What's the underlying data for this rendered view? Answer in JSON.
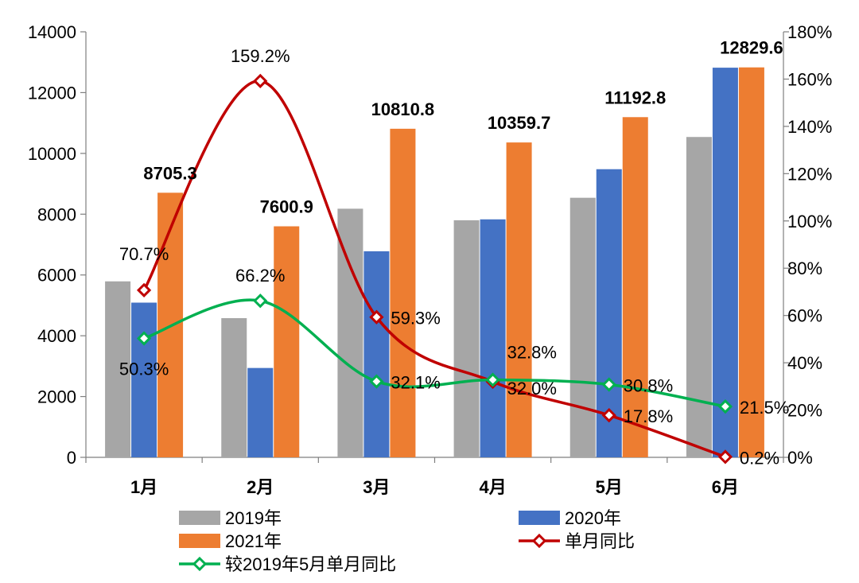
{
  "chart_data": {
    "type": "bar",
    "categories": [
      "1月",
      "2月",
      "3月",
      "4月",
      "5月",
      "6月"
    ],
    "ylim": [
      0,
      14000
    ],
    "y_ticks": [
      "0",
      "2000",
      "4000",
      "6000",
      "8000",
      "10000",
      "12000",
      "14000"
    ],
    "y2lim": [
      0,
      180
    ],
    "y2_ticks": [
      "0%",
      "20%",
      "40%",
      "60%",
      "80%",
      "100%",
      "120%",
      "140%",
      "160%",
      "180%"
    ],
    "grid": false,
    "legend_position": "bottom",
    "series": [
      {
        "name": "2019年",
        "kind": "bar",
        "color": "#a6a6a6",
        "values": [
          5790,
          4580,
          8180,
          7800,
          8540,
          10540
        ]
      },
      {
        "name": "2020年",
        "kind": "bar",
        "color": "#4472c4",
        "values": [
          5090,
          2940,
          6780,
          7830,
          9480,
          12820
        ]
      },
      {
        "name": "2021年",
        "kind": "bar",
        "color": "#ed7d31",
        "values": [
          8705.3,
          7600.9,
          10810.8,
          10359.7,
          11192.8,
          12829.6
        ],
        "data_labels": [
          "8705.3",
          "7600.9",
          "10810.8",
          "10359.7",
          "11192.8",
          "12829.6"
        ]
      },
      {
        "name": "单月同比",
        "kind": "line",
        "axis": "secondary",
        "color": "#c00000",
        "values": [
          70.7,
          159.2,
          59.3,
          32.0,
          17.8,
          0.2
        ],
        "data_labels": [
          "70.7%",
          "159.2%",
          "59.3%",
          "32.0%",
          "17.8%",
          "0.2%"
        ]
      },
      {
        "name": "较2019年5月单月同比",
        "kind": "line",
        "axis": "secondary",
        "color": "#00b050",
        "values": [
          50.3,
          66.2,
          32.1,
          32.8,
          30.8,
          21.5
        ],
        "data_labels": [
          "50.3%",
          "66.2%",
          "32.1%",
          "32.8%",
          "30.8%",
          "21.5%"
        ]
      }
    ]
  }
}
